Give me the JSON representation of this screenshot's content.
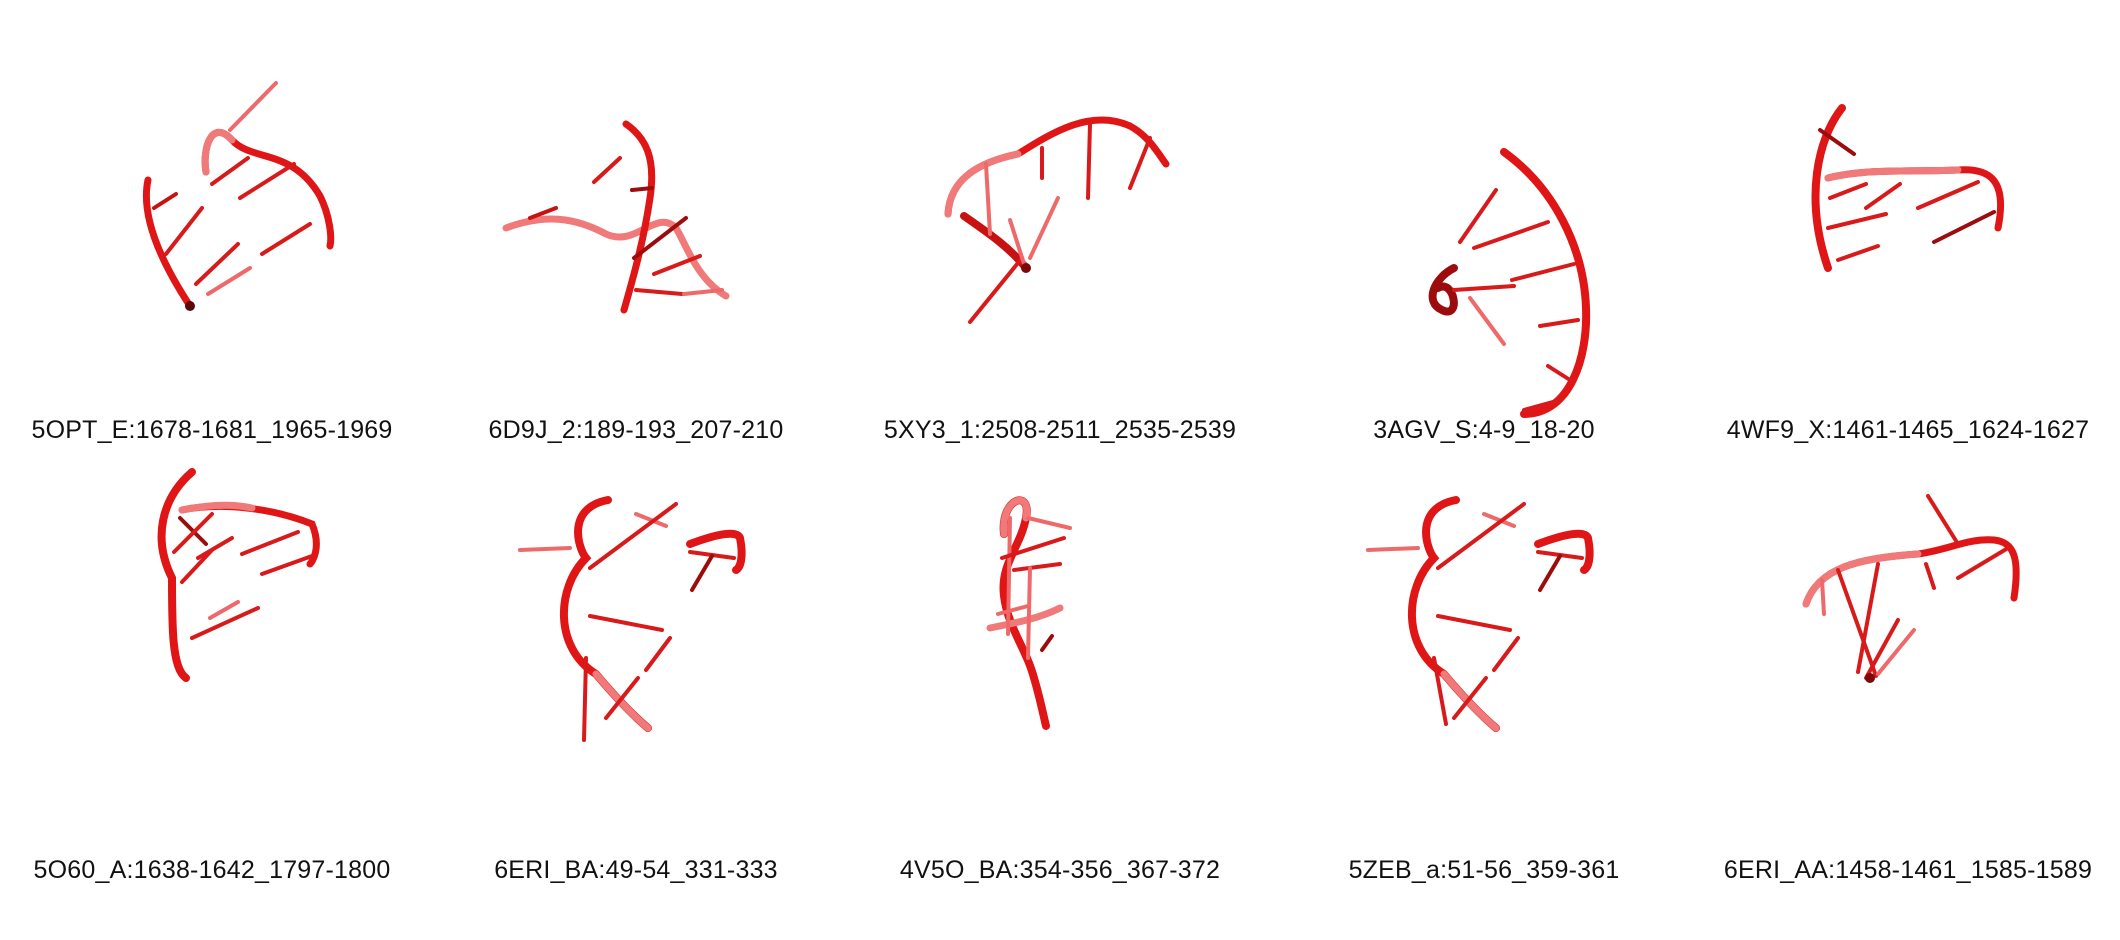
{
  "colors": {
    "backbone": "#e01515",
    "backbone_dark": "#9c0c0c",
    "backbone_light": "#f07a7a",
    "base": "#d81a1a",
    "base_light": "#ee6a6a"
  },
  "panels": [
    {
      "label": "5OPT_E:1678-1681_1965-1969"
    },
    {
      "label": "6D9J_2:189-193_207-210"
    },
    {
      "label": "5XY3_1:2508-2511_2535-2539"
    },
    {
      "label": "3AGV_S:4-9_18-20"
    },
    {
      "label": "4WF9_X:1461-1465_1624-1627"
    },
    {
      "label": "5O60_A:1638-1642_1797-1800"
    },
    {
      "label": "6ERI_BA:49-54_331-333"
    },
    {
      "label": "4V5O_BA:354-356_367-372"
    },
    {
      "label": "5ZEB_a:51-56_359-361"
    },
    {
      "label": "6ERI_AA:1458-1461_1585-1589"
    }
  ]
}
